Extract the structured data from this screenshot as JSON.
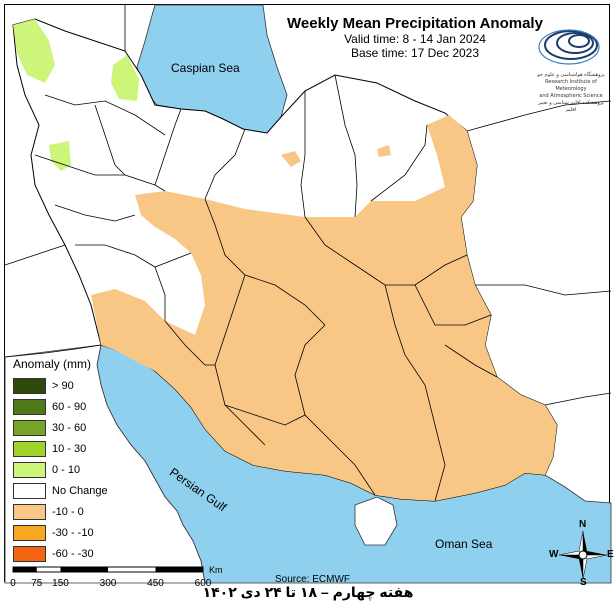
{
  "title": "Weekly Mean Precipitation Anomaly",
  "valid_time": "Valid time: 8 - 14 Jan 2024",
  "base_time": "Base time: 17 Dec 2023",
  "logo_text_lines": [
    "پژوهشگاه هواشناسی و علوم جو",
    "Research Institute of Meteorology",
    "and Atmospheric Science",
    "پژوهشکده اقلیم شناسی و تغییر اقلیم"
  ],
  "seas": {
    "caspian": "Caspian Sea",
    "persian_gulf": "Persian Gulf",
    "oman": "Oman Sea"
  },
  "legend": {
    "title": "Anomaly (mm)",
    "items": [
      {
        "label": "> 90",
        "color": "#2d4a0c"
      },
      {
        "label": "60 - 90",
        "color": "#4f7a1a"
      },
      {
        "label": "30 - 60",
        "color": "#76a52a"
      },
      {
        "label": "10 - 30",
        "color": "#9fd32a"
      },
      {
        "label": "0 - 10",
        "color": "#ccf57a"
      },
      {
        "label": "No Change",
        "color": "#ffffff"
      },
      {
        "label": "-10 - 0",
        "color": "#f9c785"
      },
      {
        "label": "-30 - -10",
        "color": "#f7a823"
      },
      {
        "label": "-60 - -30",
        "color": "#f26614"
      }
    ]
  },
  "scale": {
    "ticks": [
      "0",
      "75",
      "150",
      "300",
      "450",
      "600"
    ],
    "unit": "Km"
  },
  "source": "Source: ECMWF",
  "compass": {
    "n": "N",
    "s": "S",
    "e": "E",
    "w": "W"
  },
  "footer": "هفته چهارم – ۱۸ تا ۲۴ دی ۱۴۰۲",
  "colors": {
    "water": "#8fd0ee",
    "land_outside": "#ffffff",
    "dry": "#f9c785",
    "wet": "#ccf57a",
    "neutral": "#ffffff"
  }
}
